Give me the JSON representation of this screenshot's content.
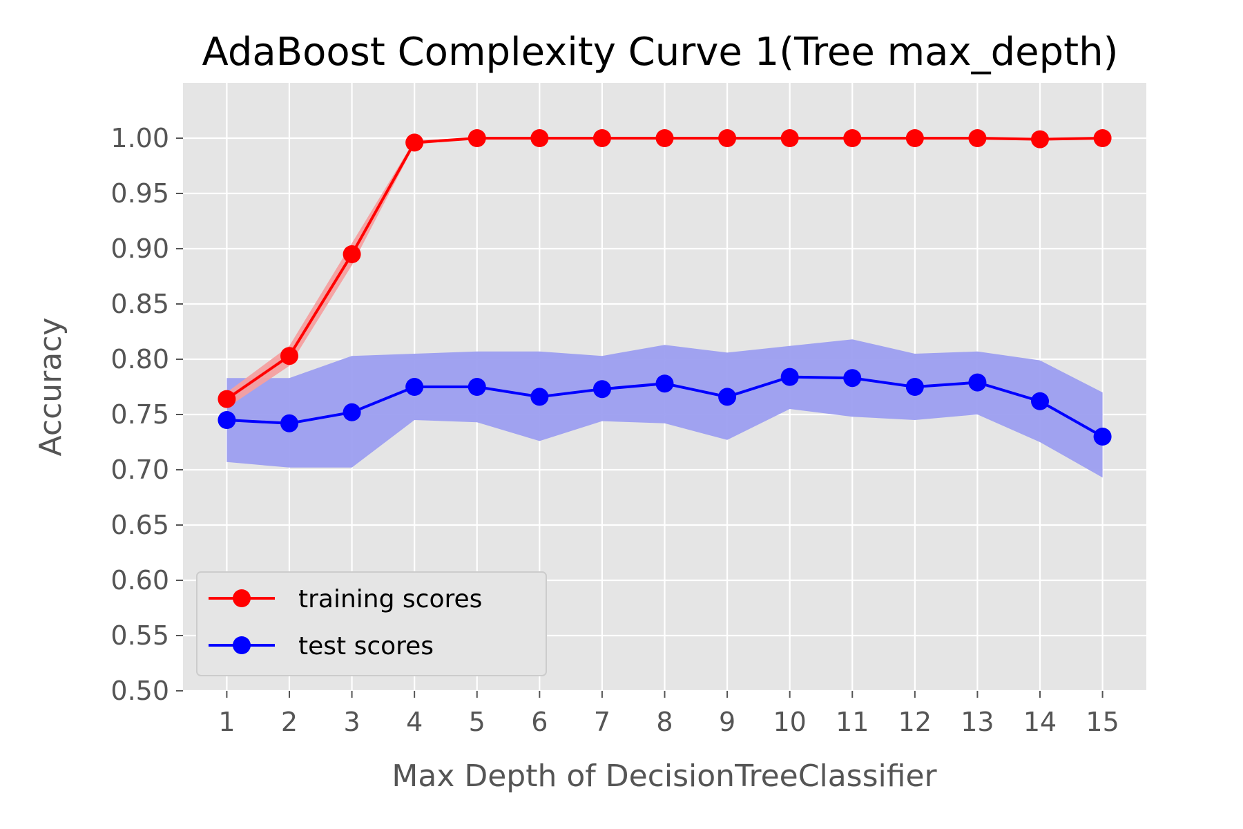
{
  "chart_data": {
    "type": "line",
    "title": "AdaBoost Complexity Curve 1(Tree max_depth)",
    "xlabel": "Max Depth of DecisionTreeClassifier",
    "ylabel": "Accuracy",
    "x": [
      1,
      2,
      3,
      4,
      5,
      6,
      7,
      8,
      9,
      10,
      11,
      12,
      13,
      14,
      15
    ],
    "xlim": [
      0.3,
      15.7
    ],
    "ylim": [
      0.5,
      1.05
    ],
    "yticks": [
      "0.50",
      "0.55",
      "0.60",
      "0.65",
      "0.70",
      "0.75",
      "0.80",
      "0.85",
      "0.90",
      "0.95",
      "1.00"
    ],
    "grid": true,
    "legend_position": "lower-left",
    "series": [
      {
        "name": "training scores",
        "color": "#ff0000",
        "band_color": "#f4a0a0",
        "values": [
          0.764,
          0.803,
          0.895,
          0.996,
          1.0,
          1.0,
          1.0,
          1.0,
          1.0,
          1.0,
          1.0,
          1.0,
          1.0,
          0.999,
          1.0
        ],
        "upper": [
          0.77,
          0.812,
          0.905,
          0.998,
          1.0,
          1.0,
          1.0,
          1.0,
          1.0,
          1.0,
          1.0,
          1.0,
          1.0,
          1.0,
          1.0
        ],
        "lower": [
          0.756,
          0.794,
          0.885,
          0.994,
          1.0,
          1.0,
          1.0,
          1.0,
          1.0,
          1.0,
          1.0,
          1.0,
          1.0,
          0.998,
          1.0
        ]
      },
      {
        "name": "test scores",
        "color": "#0000ff",
        "band_color": "#9c9ef0",
        "values": [
          0.745,
          0.742,
          0.752,
          0.775,
          0.775,
          0.766,
          0.773,
          0.778,
          0.766,
          0.784,
          0.783,
          0.775,
          0.779,
          0.762,
          0.73
        ],
        "upper": [
          0.783,
          0.783,
          0.803,
          0.805,
          0.807,
          0.807,
          0.803,
          0.813,
          0.806,
          0.812,
          0.818,
          0.805,
          0.807,
          0.799,
          0.77
        ],
        "lower": [
          0.707,
          0.702,
          0.702,
          0.745,
          0.743,
          0.726,
          0.744,
          0.742,
          0.727,
          0.755,
          0.748,
          0.745,
          0.75,
          0.725,
          0.693
        ]
      }
    ]
  }
}
